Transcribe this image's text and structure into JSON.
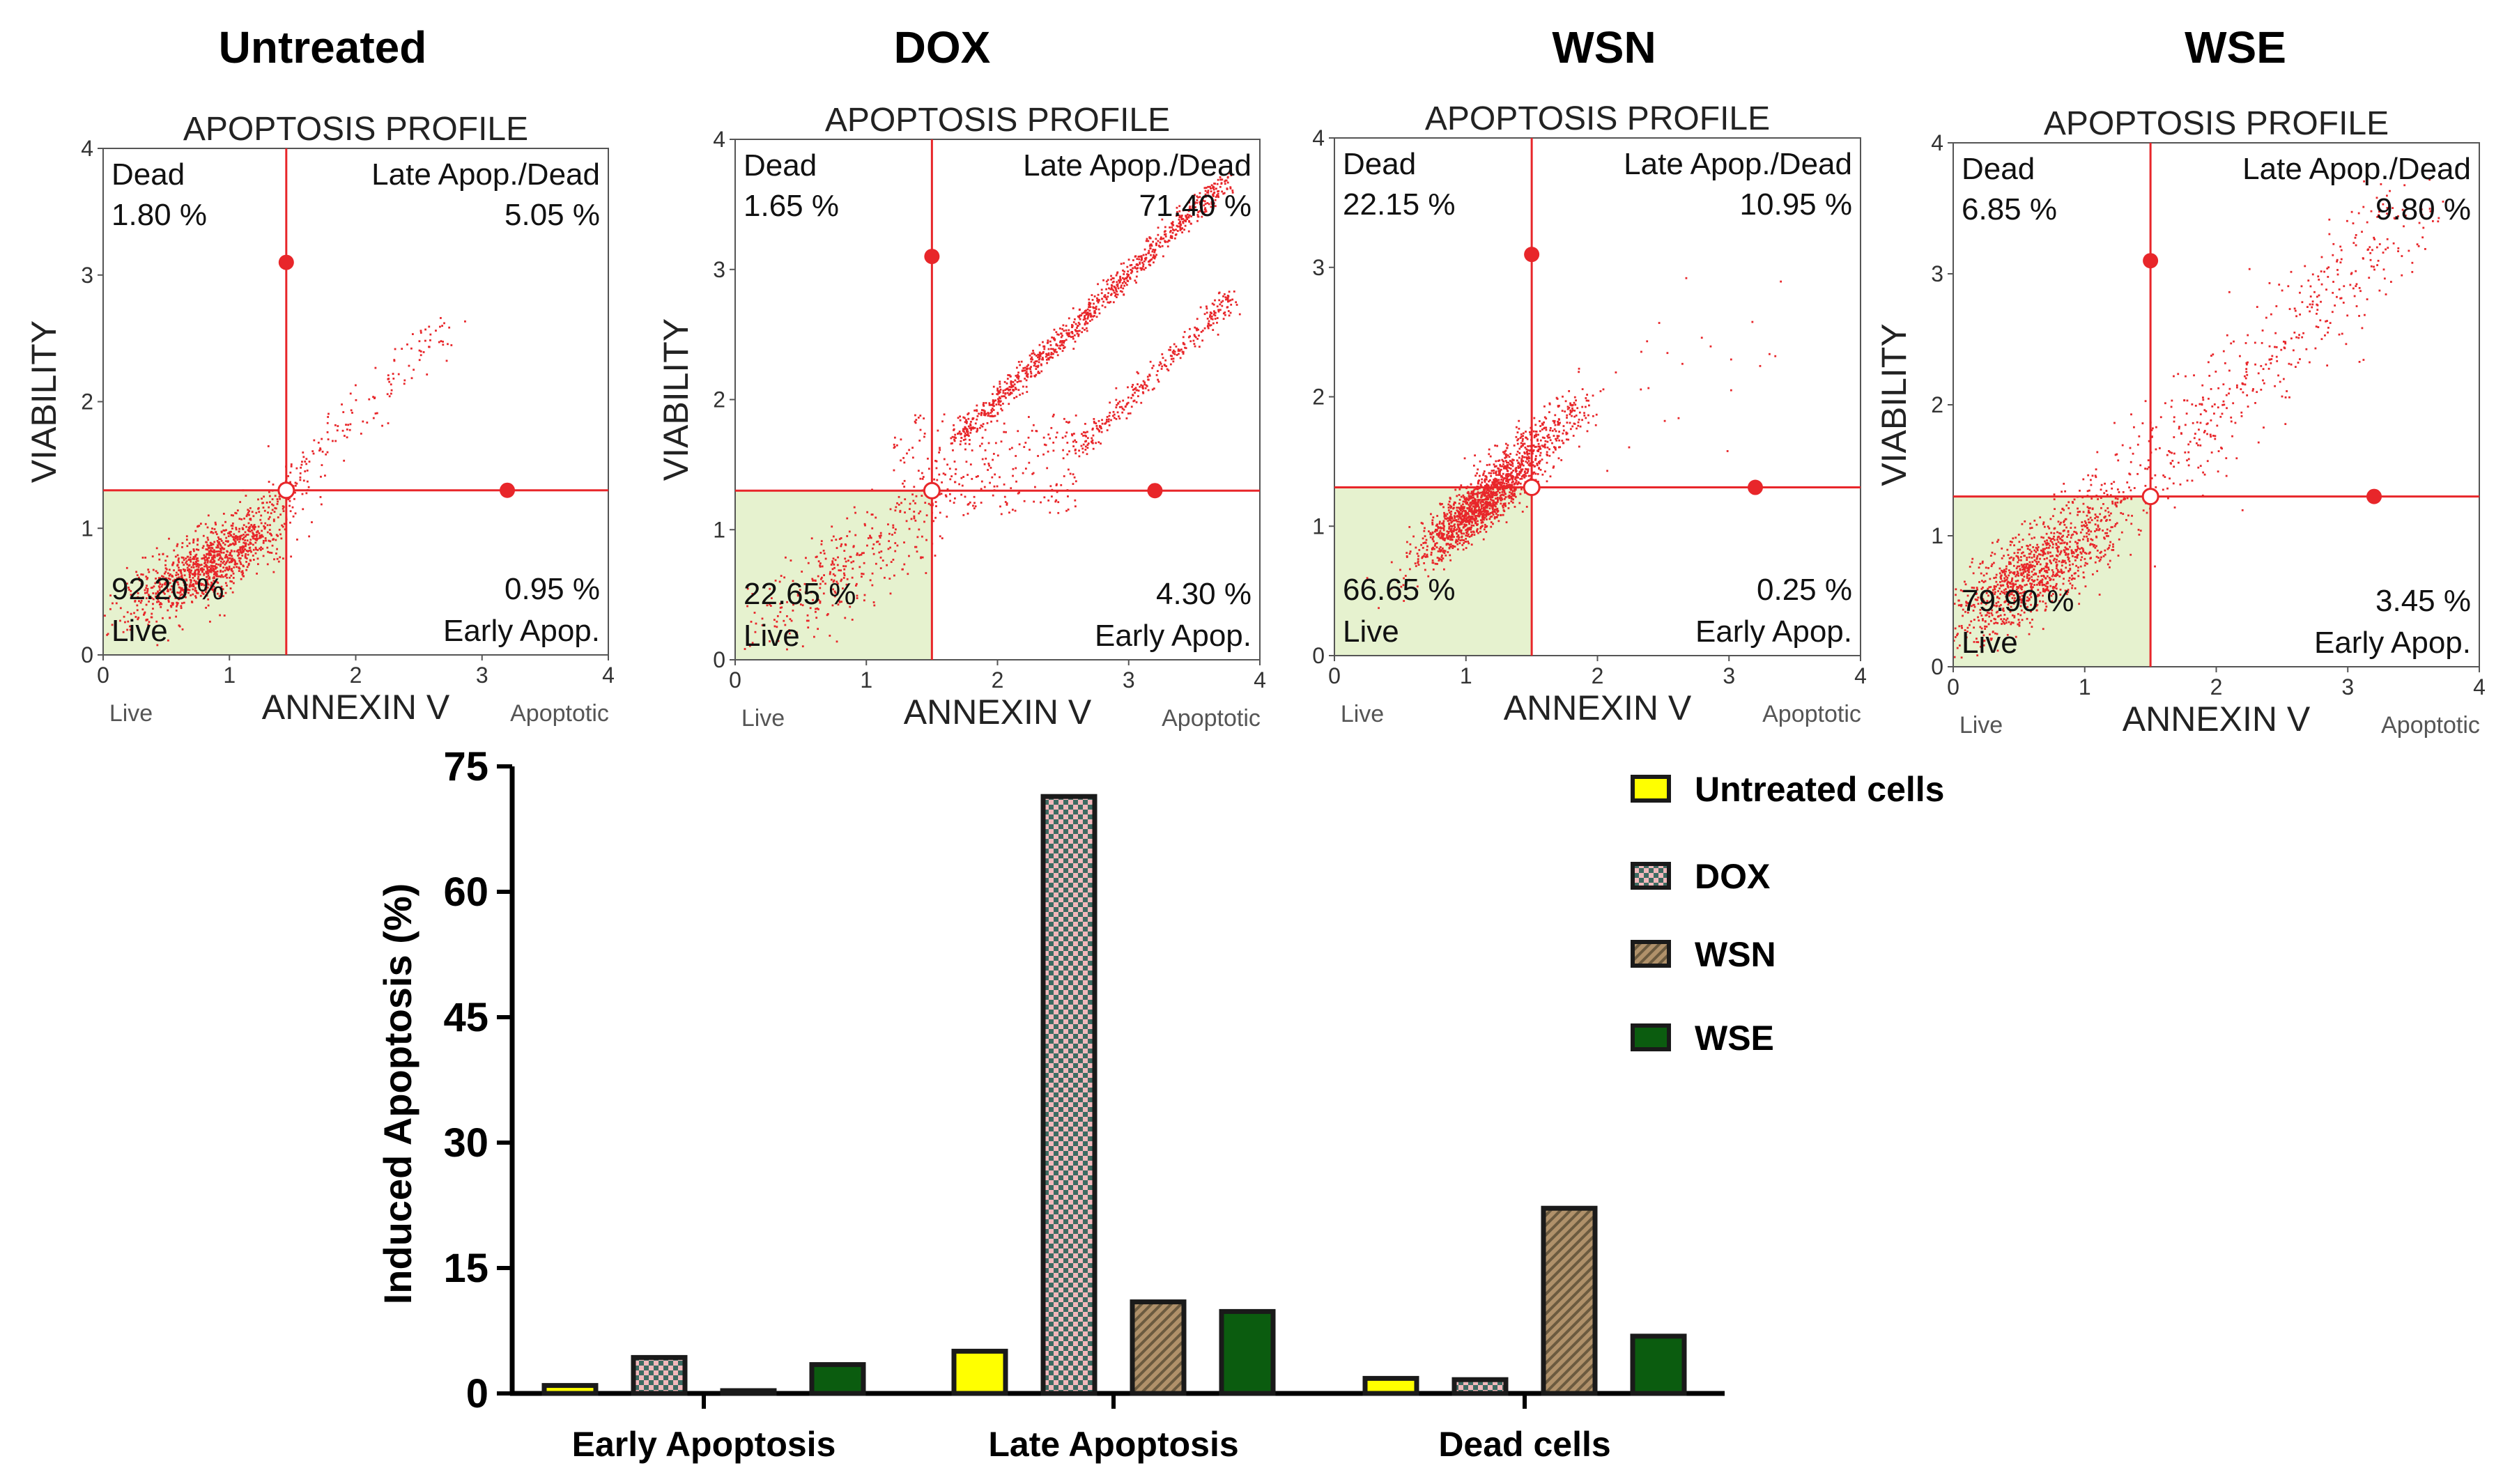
{
  "panels": [
    {
      "heading": "Untreated",
      "title": "APOPTOSIS PROFILE",
      "ylabel": "VIABILITY",
      "xlabel": "ANNEXIN V",
      "x_left_label": "Live",
      "x_right_label": "Apoptotic",
      "ticks": [
        "0",
        "1",
        "2",
        "3",
        "4"
      ],
      "q_dead_label": "Dead",
      "q_dead_value": "1.80 %",
      "q_late_label": "Late Apop./Dead",
      "q_late_value": "5.05 %",
      "q_live_label": "Live",
      "q_live_value": "92.20 %",
      "q_early_label": "Early Apop.",
      "q_early_value": "0.95 %"
    },
    {
      "heading": "DOX",
      "title": "APOPTOSIS PROFILE",
      "ylabel": "VIABILITY",
      "xlabel": "ANNEXIN V",
      "x_left_label": "Live",
      "x_right_label": "Apoptotic",
      "ticks": [
        "0",
        "1",
        "2",
        "3",
        "4"
      ],
      "q_dead_label": "Dead",
      "q_dead_value": "1.65 %",
      "q_late_label": "Late Apop./Dead",
      "q_late_value": "71.40 %",
      "q_live_label": "Live",
      "q_live_value": "22.65 %",
      "q_early_label": "Early Apop.",
      "q_early_value": "4.30 %"
    },
    {
      "heading": "WSN",
      "title": "APOPTOSIS PROFILE",
      "ylabel": "",
      "xlabel": "ANNEXIN V",
      "x_left_label": "Live",
      "x_right_label": "Apoptotic",
      "ticks": [
        "0",
        "1",
        "2",
        "3",
        "4"
      ],
      "q_dead_label": "Dead",
      "q_dead_value": "22.15 %",
      "q_late_label": "Late Apop./Dead",
      "q_late_value": "10.95 %",
      "q_live_label": "Live",
      "q_live_value": "66.65 %",
      "q_early_label": "Early Apop.",
      "q_early_value": "0.25 %"
    },
    {
      "heading": "WSE",
      "title": "APOPTOSIS PROFILE",
      "ylabel": "VIABILITY",
      "xlabel": "ANNEXIN V",
      "x_left_label": "Live",
      "x_right_label": "Apoptotic",
      "ticks": [
        "0",
        "1",
        "2",
        "3",
        "4"
      ],
      "q_dead_label": "Dead",
      "q_dead_value": "6.85 %",
      "q_late_label": "Late Apop./Dead",
      "q_late_value": "9.80 %",
      "q_live_label": "Live",
      "q_live_value": "79.90 %",
      "q_early_label": "Early Apop.",
      "q_early_value": "3.45 %"
    }
  ],
  "colors": {
    "scatter_points": "#e8262a",
    "gate_lines": "#e8262a",
    "live_quadrant": "#e6f2cf",
    "untreated": "#ffff00",
    "dox_a": "#f2b8bb",
    "dox_b": "#3d6b62",
    "wsn_a": "#b0916a",
    "wsn_b": "#6b5a3f",
    "wse": "#0b5c0f",
    "bar_outline": "#1a1a1a"
  },
  "chart_data": [
    {
      "type": "scatter",
      "title": "APOPTOSIS PROFILE",
      "xlabel": "ANNEXIN V",
      "ylabel": "VIABILITY",
      "xlim": [
        0,
        4
      ],
      "ylim": [
        0,
        4
      ],
      "gates": {
        "x": 1.45,
        "y": 1.3
      },
      "markers": [
        {
          "x": 1.45,
          "y": 3.1
        },
        {
          "x": 3.2,
          "y": 1.3
        }
      ],
      "quadrants": {
        "dead": 1.8,
        "late_apop_dead": 5.05,
        "live": 92.2,
        "early_apop": 0.95
      }
    },
    {
      "type": "scatter",
      "title": "APOPTOSIS PROFILE",
      "xlabel": "ANNEXIN V",
      "ylabel": "VIABILITY",
      "xlim": [
        0,
        4
      ],
      "ylim": [
        0,
        4
      ],
      "gates": {
        "x": 1.5,
        "y": 1.3
      },
      "markers": [
        {
          "x": 1.5,
          "y": 3.1
        },
        {
          "x": 3.2,
          "y": 1.3
        }
      ],
      "quadrants": {
        "dead": 1.65,
        "late_apop_dead": 71.4,
        "live": 22.65,
        "early_apop": 4.3
      }
    },
    {
      "type": "scatter",
      "title": "APOPTOSIS PROFILE",
      "xlabel": "ANNEXIN V",
      "ylabel": "",
      "xlim": [
        0,
        4
      ],
      "ylim": [
        0,
        4
      ],
      "gates": {
        "x": 1.5,
        "y": 1.3
      },
      "markers": [
        {
          "x": 1.5,
          "y": 3.1
        },
        {
          "x": 3.2,
          "y": 1.3
        }
      ],
      "quadrants": {
        "dead": 22.15,
        "late_apop_dead": 10.95,
        "live": 66.65,
        "early_apop": 0.25
      }
    },
    {
      "type": "scatter",
      "title": "APOPTOSIS PROFILE",
      "xlabel": "ANNEXIN V",
      "ylabel": "VIABILITY",
      "xlim": [
        0,
        4
      ],
      "ylim": [
        0,
        4
      ],
      "gates": {
        "x": 1.5,
        "y": 1.3
      },
      "markers": [
        {
          "x": 1.5,
          "y": 3.1
        },
        {
          "x": 3.2,
          "y": 1.3
        }
      ],
      "quadrants": {
        "dead": 6.85,
        "late_apop_dead": 9.8,
        "live": 79.9,
        "early_apop": 3.45
      }
    },
    {
      "type": "bar",
      "categories": [
        "Early Apoptosis",
        "Late Apoptosis",
        "Dead cells"
      ],
      "series": [
        {
          "name": "Untreated cells",
          "values": [
            0.95,
            5.05,
            1.8
          ]
        },
        {
          "name": "DOX",
          "values": [
            4.3,
            71.4,
            1.65
          ]
        },
        {
          "name": "WSN",
          "values": [
            0.25,
            10.95,
            22.15
          ]
        },
        {
          "name": "WSE",
          "values": [
            3.45,
            9.8,
            6.85
          ]
        }
      ],
      "ylabel": "Induced Apoptosis (%)",
      "ylim": [
        0,
        75
      ],
      "yticks": [
        0,
        15,
        30,
        45,
        60,
        75
      ],
      "legend": "right"
    }
  ]
}
